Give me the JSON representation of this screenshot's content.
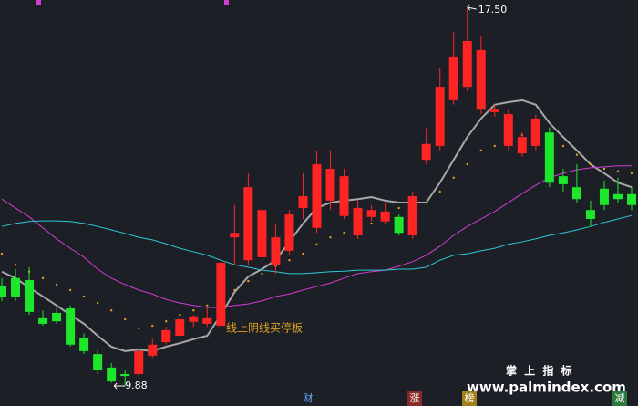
{
  "chart_data": {
    "type": "candlestick",
    "up_color": "#ff2424",
    "down_color": "#1ee62a",
    "open": [
      11.9,
      12.05,
      12.01,
      11.26,
      11.35,
      11.44,
      10.85,
      10.52,
      10.25,
      10.12,
      10.12,
      10.49,
      10.76,
      10.89,
      11.17,
      11.13,
      11.09,
      12.87,
      12.41,
      12.47,
      12.32,
      12.6,
      13.46,
      13.06,
      13.61,
      13.3,
      12.91,
      13.28,
      13.19,
      13.28,
      12.91,
      14.43,
      14.71,
      15.63,
      15.9,
      15.44,
      15.39,
      14.71,
      14.56,
      14.71,
      14.98,
      14.1,
      13.88,
      13.42,
      13.85,
      13.74,
      13.74
    ],
    "high": [
      12.05,
      12.23,
      12.27,
      11.4,
      11.44,
      11.5,
      10.94,
      10.61,
      10.34,
      10.21,
      10.61,
      10.85,
      11.07,
      11.26,
      11.31,
      11.44,
      12.41,
      13.52,
      14.16,
      13.7,
      13.15,
      13.42,
      14.16,
      14.62,
      14.62,
      14.25,
      13.61,
      13.52,
      13.57,
      13.33,
      13.79,
      15.08,
      16.27,
      17.0,
      17.5,
      16.91,
      15.54,
      15.44,
      14.98,
      15.35,
      15.08,
      14.25,
      14.34,
      13.61,
      14.01,
      14.07,
      13.88
    ],
    "low": [
      11.59,
      11.59,
      11.31,
      11.09,
      11.13,
      10.67,
      10.52,
      10.12,
      9.94,
      9.88,
      10.06,
      10.45,
      10.71,
      10.85,
      11.07,
      11.07,
      11.04,
      12.32,
      12.32,
      12.32,
      12.14,
      12.51,
      13.24,
      12.96,
      13.42,
      13.24,
      12.84,
      13.2,
      13.15,
      12.91,
      12.84,
      14.34,
      14.62,
      15.54,
      15.81,
      15.35,
      15.3,
      14.62,
      14.49,
      14.62,
      13.88,
      13.79,
      13.57,
      13.09,
      13.42,
      13.57,
      13.42
    ],
    "close": [
      11.68,
      11.68,
      11.37,
      11.13,
      11.18,
      10.71,
      10.58,
      10.21,
      9.97,
      10.08,
      10.58,
      10.71,
      11.0,
      11.22,
      11.28,
      11.26,
      12.36,
      12.96,
      13.88,
      13.42,
      12.87,
      13.33,
      13.7,
      14.34,
      14.25,
      14.1,
      13.46,
      13.42,
      13.39,
      12.96,
      13.7,
      14.75,
      15.9,
      16.51,
      16.82,
      16.64,
      15.44,
      15.35,
      14.89,
      15.26,
      13.97,
      13.94,
      13.64,
      13.24,
      13.52,
      13.64,
      13.52
    ],
    "series": [
      {
        "style": "line",
        "color": "#a8a8a8",
        "values": [
          12.18,
          12.05,
          11.86,
          11.68,
          11.5,
          11.31,
          11.13,
          10.89,
          10.67,
          10.58,
          10.61,
          10.58,
          10.67,
          10.74,
          10.82,
          10.89,
          11.31,
          11.77,
          12.08,
          12.23,
          12.41,
          12.78,
          13.15,
          13.46,
          13.57,
          13.61,
          13.64,
          13.68,
          13.61,
          13.57,
          13.57,
          13.57,
          13.97,
          14.43,
          14.89,
          15.26,
          15.54,
          15.59,
          15.63,
          15.54,
          15.17,
          14.89,
          14.62,
          14.34,
          14.16,
          13.97,
          13.88
        ]
      },
      {
        "style": "line",
        "color": "#d23cd2",
        "values": [
          13.64,
          13.46,
          13.28,
          13.06,
          12.84,
          12.65,
          12.47,
          12.23,
          12.05,
          11.92,
          11.81,
          11.73,
          11.62,
          11.55,
          11.5,
          11.46,
          11.46,
          11.5,
          11.53,
          11.59,
          11.68,
          11.73,
          11.81,
          11.88,
          11.95,
          12.05,
          12.14,
          12.18,
          12.21,
          12.29,
          12.38,
          12.51,
          12.69,
          12.91,
          13.09,
          13.24,
          13.39,
          13.57,
          13.75,
          13.92,
          14.07,
          14.16,
          14.23,
          14.27,
          14.29,
          14.31,
          14.31
        ]
      },
      {
        "style": "line",
        "color": "#2ec8d2",
        "values": [
          13.09,
          13.15,
          13.19,
          13.2,
          13.2,
          13.19,
          13.15,
          13.09,
          13.02,
          12.95,
          12.87,
          12.82,
          12.74,
          12.65,
          12.58,
          12.51,
          12.41,
          12.32,
          12.27,
          12.21,
          12.18,
          12.14,
          12.14,
          12.16,
          12.18,
          12.19,
          12.21,
          12.21,
          12.21,
          12.23,
          12.23,
          12.27,
          12.41,
          12.51,
          12.54,
          12.6,
          12.65,
          12.73,
          12.78,
          12.84,
          12.91,
          12.96,
          13.02,
          13.09,
          13.17,
          13.24,
          13.31
        ]
      },
      {
        "style": "dots",
        "color": "#e0a020",
        "values": [
          12.54,
          12.32,
          12.18,
          12.05,
          11.92,
          11.81,
          11.68,
          11.55,
          11.4,
          11.22,
          11.04,
          11.09,
          11.18,
          11.31,
          11.4,
          11.5,
          11.68,
          11.81,
          11.99,
          12.14,
          12.29,
          12.41,
          12.54,
          12.73,
          12.87,
          12.96,
          13.06,
          13.15,
          13.28,
          13.46,
          13.52,
          13.57,
          13.79,
          14.07,
          14.34,
          14.62,
          14.71,
          14.89,
          14.93,
          14.89,
          14.8,
          14.71,
          14.53,
          14.34,
          14.25,
          14.2,
          14.16
        ]
      }
    ],
    "high_label": "17.50",
    "low_label": "9.88",
    "note": "线上阴线买停板"
  },
  "footer": {
    "tabs": [
      {
        "text": "财",
        "color": "#6aa8ff",
        "bg": "#1c1f26"
      },
      {
        "text": "涨",
        "color": "#ffffff",
        "bg": "#8a2a2a"
      },
      {
        "text": "榜",
        "color": "#ffffff",
        "bg": "#a08018"
      },
      {
        "text": "减",
        "color": "#ffffff",
        "bg": "#2a7a3a"
      }
    ],
    "brand": "掌 上 指 标",
    "url": "www.palmindex.com"
  }
}
